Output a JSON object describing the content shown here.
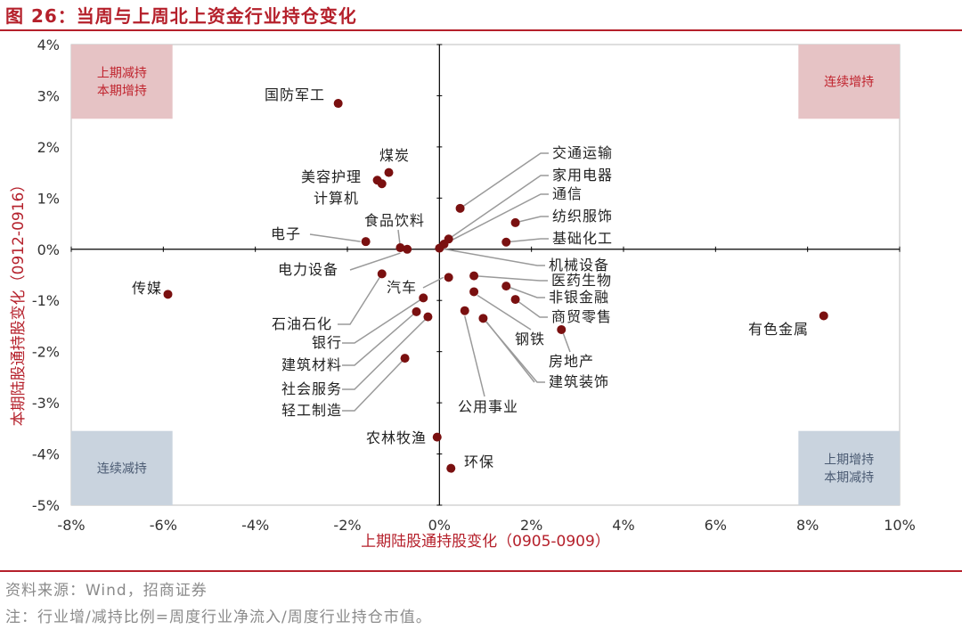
{
  "title": "图 26：当周与上周北上资金行业持仓变化",
  "footer": {
    "source": "资料来源：Wind，招商证券",
    "note": "注：行业增/减持比例=周度行业净流入/周度行业持仓市值。"
  },
  "colors": {
    "accent": "#b5202b",
    "point": "#7a1010",
    "quadrant_red": "#e6c3c5",
    "quadrant_blue": "#c9d3de",
    "quadrant_red_text": "#c0242e",
    "quadrant_blue_text": "#4a5a72"
  },
  "chart_data": {
    "type": "scatter",
    "xlabel": "上期陆股通持股变化（0905-0909）",
    "ylabel": "本期陆股通持股变化（0912-0916）",
    "xlim": [
      -8,
      10
    ],
    "ylim": [
      -5,
      4
    ],
    "unit": "%",
    "xticks": [
      "-8%",
      "-6%",
      "-4%",
      "-2%",
      "0%",
      "2%",
      "4%",
      "6%",
      "8%",
      "10%"
    ],
    "yticks": [
      "4%",
      "3%",
      "2%",
      "1%",
      "0%",
      "-1%",
      "-2%",
      "-3%",
      "-4%",
      "-5%"
    ],
    "quadrant_labels": {
      "top_left": [
        "上期减持",
        "本期增持"
      ],
      "top_right": [
        "连续增持"
      ],
      "bottom_left": [
        "连续减持"
      ],
      "bottom_right": [
        "上期增持",
        "本期减持"
      ]
    },
    "points": [
      {
        "name": "国防军工",
        "x": -2.2,
        "y": 2.85
      },
      {
        "name": "煤炭",
        "x": -1.1,
        "y": 1.5
      },
      {
        "name": "美容护理",
        "x": -1.35,
        "y": 1.35
      },
      {
        "name": "计算机",
        "x": -1.25,
        "y": 1.28
      },
      {
        "name": "电子",
        "x": -1.6,
        "y": 0.15
      },
      {
        "name": "食品饮料",
        "x": -0.7,
        "y": 0.0
      },
      {
        "name": "电力设备",
        "x": -0.85,
        "y": 0.03
      },
      {
        "name": "传媒",
        "x": -5.9,
        "y": -0.88
      },
      {
        "name": "交通运输",
        "x": 0.45,
        "y": 0.8
      },
      {
        "name": "家用电器",
        "x": 0.2,
        "y": 0.2
      },
      {
        "name": "通信",
        "x": 0.1,
        "y": 0.1
      },
      {
        "name": "纺织服饰",
        "x": 1.65,
        "y": 0.52
      },
      {
        "name": "基础化工",
        "x": 1.45,
        "y": 0.14
      },
      {
        "name": "机械设备",
        "x": 0.0,
        "y": 0.02
      },
      {
        "name": "医药生物",
        "x": 0.75,
        "y": -0.52
      },
      {
        "name": "非银金融",
        "x": 1.45,
        "y": -0.72
      },
      {
        "name": "商贸零售",
        "x": 1.65,
        "y": -0.98
      },
      {
        "name": "汽车",
        "x": 0.2,
        "y": -0.55
      },
      {
        "name": "石油石化",
        "x": -1.25,
        "y": -0.48
      },
      {
        "name": "银行",
        "x": -0.35,
        "y": -0.95
      },
      {
        "name": "建筑材料",
        "x": -0.5,
        "y": -1.22
      },
      {
        "name": "社会服务",
        "x": -0.25,
        "y": -1.32
      },
      {
        "name": "轻工制造",
        "x": -0.75,
        "y": -2.13
      },
      {
        "name": "公用事业",
        "x": 0.55,
        "y": -1.2
      },
      {
        "name": "建筑装饰",
        "x": 0.95,
        "y": -1.35
      },
      {
        "name": "钢铁",
        "x": 0.75,
        "y": -0.83
      },
      {
        "name": "房地产",
        "x": 2.65,
        "y": -1.57
      },
      {
        "name": "有色金属",
        "x": 8.35,
        "y": -1.3
      },
      {
        "name": "农林牧渔",
        "x": -0.05,
        "y": -3.67
      },
      {
        "name": "环保",
        "x": 0.25,
        "y": -4.28
      }
    ]
  }
}
